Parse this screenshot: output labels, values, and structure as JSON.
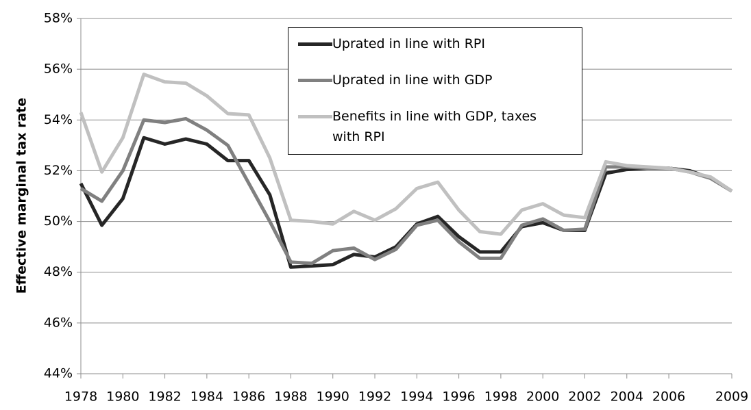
{
  "chart_data": {
    "type": "line",
    "y_label": "Effective marginal tax rate",
    "x": [
      1978,
      1979,
      1980,
      1981,
      1982,
      1983,
      1984,
      1985,
      1986,
      1987,
      1988,
      1989,
      1990,
      1991,
      1992,
      1993,
      1994,
      1995,
      1996,
      1997,
      1998,
      1999,
      2000,
      2001,
      2002,
      2003,
      2004,
      2005,
      2006,
      2007,
      2008,
      2009
    ],
    "series": [
      {
        "name": "Uprated in line with RPI",
        "color": "#262626",
        "values": [
          51.5,
          49.85,
          50.9,
          53.3,
          53.05,
          53.25,
          53.05,
          52.4,
          52.4,
          51.05,
          48.2,
          48.25,
          48.3,
          48.7,
          48.6,
          49.0,
          49.9,
          50.2,
          49.4,
          48.8,
          48.8,
          49.8,
          49.95,
          49.65,
          49.65,
          51.9,
          52.05,
          52.1,
          52.1,
          52.0,
          51.7,
          51.2
        ]
      },
      {
        "name": "Uprated in line with GDP",
        "color": "#808080",
        "values": [
          51.3,
          50.8,
          52.0,
          54.0,
          53.9,
          54.05,
          53.6,
          53.0,
          51.5,
          50.0,
          48.4,
          48.35,
          48.85,
          48.95,
          48.5,
          48.9,
          49.85,
          50.05,
          49.2,
          48.55,
          48.55,
          49.85,
          50.1,
          49.65,
          49.7,
          52.15,
          52.15,
          52.1,
          52.1,
          51.95,
          51.7,
          51.2
        ]
      },
      {
        "name": "Benefits in line with GDP, taxes with RPI",
        "color": "#c0c0c0",
        "values": [
          54.3,
          51.95,
          53.3,
          55.8,
          55.5,
          55.45,
          54.95,
          54.25,
          54.2,
          52.5,
          50.05,
          50.0,
          49.9,
          50.4,
          50.05,
          50.5,
          51.3,
          51.55,
          50.45,
          49.6,
          49.5,
          50.45,
          50.7,
          50.25,
          50.15,
          52.35,
          52.2,
          52.15,
          52.1,
          51.95,
          51.75,
          51.2
        ]
      }
    ],
    "xlim": [
      1978,
      2009
    ],
    "xticks": [
      1978,
      1980,
      1982,
      1984,
      1986,
      1988,
      1990,
      1992,
      1994,
      1996,
      1998,
      2000,
      2002,
      2004,
      2006,
      2009
    ],
    "ylim": [
      44,
      58
    ],
    "yticks": [
      {
        "value": 44,
        "label": "44%"
      },
      {
        "value": 46,
        "label": "46%"
      },
      {
        "value": 48,
        "label": "48%"
      },
      {
        "value": 50,
        "label": "50%"
      },
      {
        "value": 52,
        "label": "52%"
      },
      {
        "value": 54,
        "label": "54%"
      },
      {
        "value": 56,
        "label": "56%"
      },
      {
        "value": 58,
        "label": "58%"
      }
    ],
    "grid": true
  }
}
